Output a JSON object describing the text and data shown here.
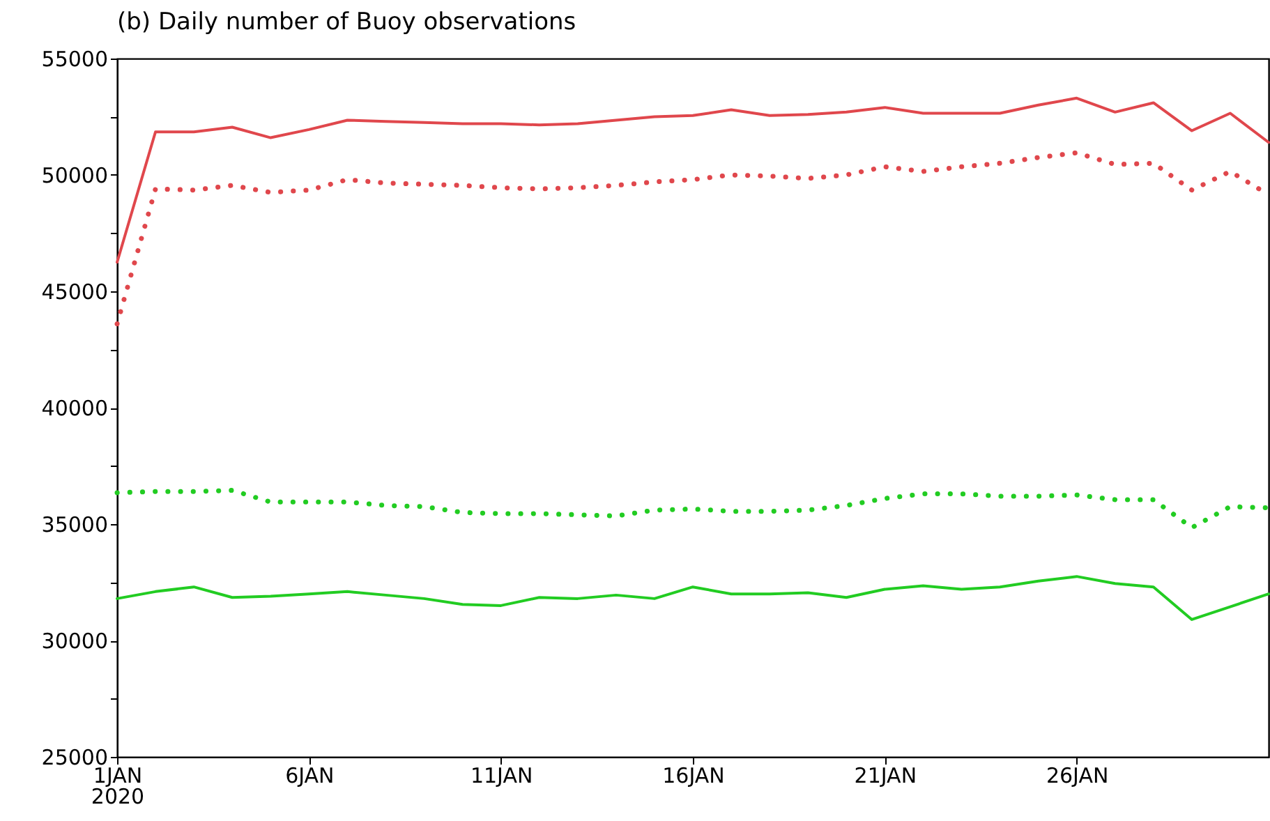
{
  "chart_data": {
    "type": "line",
    "title": "(b) Daily number of Buoy observations",
    "x": [
      "2020-01-01",
      "2020-01-02",
      "2020-01-03",
      "2020-01-04",
      "2020-01-05",
      "2020-01-06",
      "2020-01-07",
      "2020-01-08",
      "2020-01-09",
      "2020-01-10",
      "2020-01-11",
      "2020-01-12",
      "2020-01-13",
      "2020-01-14",
      "2020-01-15",
      "2020-01-16",
      "2020-01-17",
      "2020-01-18",
      "2020-01-19",
      "2020-01-20",
      "2020-01-21",
      "2020-01-22",
      "2020-01-23",
      "2020-01-24",
      "2020-01-25",
      "2020-01-26",
      "2020-01-27",
      "2020-01-28",
      "2020-01-29",
      "2020-01-30",
      "2020-01-31"
    ],
    "series": [
      {
        "color": "#e0474c",
        "line_style": "solid",
        "values": [
          46250,
          51850,
          51850,
          52050,
          51600,
          51950,
          52350,
          52300,
          52250,
          52200,
          52200,
          52150,
          52200,
          52350,
          52500,
          52550,
          52800,
          52550,
          52600,
          52700,
          52900,
          52650,
          52650,
          52650,
          53000,
          53300,
          52700,
          53100,
          51900,
          52650,
          51400
        ]
      },
      {
        "color": "#e0474c",
        "line_style": "dotted",
        "values": [
          43600,
          49400,
          49350,
          49550,
          49250,
          49350,
          49800,
          49650,
          49600,
          49550,
          49450,
          49400,
          49450,
          49550,
          49700,
          49800,
          50000,
          49950,
          49850,
          50000,
          50350,
          50150,
          50350,
          50500,
          50750,
          50950,
          50450,
          50500,
          49350,
          50150,
          49150
        ]
      },
      {
        "color": "#22cc22",
        "line_style": "dotted",
        "values": [
          36350,
          36400,
          36400,
          36450,
          35950,
          35950,
          35950,
          35800,
          35750,
          35500,
          35450,
          35450,
          35400,
          35350,
          35600,
          35650,
          35550,
          35550,
          35600,
          35800,
          36100,
          36300,
          36300,
          36200,
          36200,
          36250,
          36050,
          36050,
          34850,
          35750,
          35700
        ]
      },
      {
        "color": "#22cc22",
        "line_style": "solid",
        "values": [
          31800,
          32100,
          32300,
          31850,
          31900,
          32000,
          32100,
          31950,
          31800,
          31550,
          31500,
          31850,
          31800,
          31950,
          31800,
          32300,
          32000,
          32000,
          32050,
          31850,
          32200,
          32350,
          32200,
          32300,
          32550,
          32750,
          32450,
          32300,
          30900,
          31450,
          32000
        ]
      }
    ],
    "xlim": [
      "2020-01-01",
      "2020-01-31"
    ],
    "xticks": [
      {
        "value": "2020-01-01",
        "label": "1JAN\n2020"
      },
      {
        "value": "2020-01-06",
        "label": "6JAN"
      },
      {
        "value": "2020-01-11",
        "label": "11JAN"
      },
      {
        "value": "2020-01-16",
        "label": "16JAN"
      },
      {
        "value": "2020-01-21",
        "label": "21JAN"
      },
      {
        "value": "2020-01-26",
        "label": "26JAN"
      }
    ],
    "ylim": [
      25000,
      55000
    ],
    "yticks": [
      25000,
      {
        "value": 27500,
        "label": null
      },
      30000,
      {
        "value": 32500,
        "label": null
      },
      35000,
      {
        "value": 37500,
        "label": null
      },
      40000,
      {
        "value": 42500,
        "label": null
      },
      45000,
      {
        "value": 47500,
        "label": null
      },
      50000,
      {
        "value": 52500,
        "label": null
      },
      55000
    ],
    "grid": false
  }
}
